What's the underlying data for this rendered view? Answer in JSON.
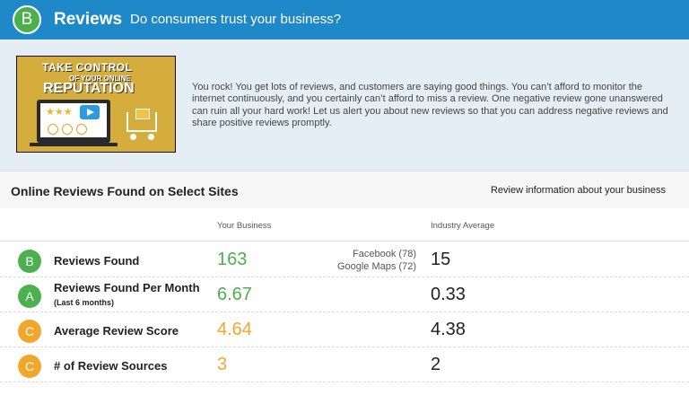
{
  "header": {
    "grade": "B",
    "grade_color": "#4cb04e",
    "title": "Reviews",
    "subtitle": "Do consumers trust your business?",
    "bar_color": "#1e88c8"
  },
  "intro": {
    "thumbnail": {
      "line1": "TAKE CONTROL",
      "line2": "OF YOUR ONLINE",
      "line3": "REPUTATION",
      "stars": "★★★"
    },
    "text": "You rock! You get lots of reviews, and customers are saying good things. You can’t afford to monitor the internet continuously, and you certainly can’t afford to miss a review. One negative review gone unanswered can ruin all your hard work! Let us alert you about new reviews so that you can address negative reviews and share positive reviews promptly."
  },
  "section": {
    "title": "Online Reviews Found on Select Sites",
    "link": "Review information about your business"
  },
  "columns": {
    "your_business": "Your Business",
    "industry_average": "Industry Average"
  },
  "rows": [
    {
      "grade": "B",
      "grade_color": "#4cb04e",
      "label": "Reviews Found",
      "value": "163",
      "value_color": "#4cb04e",
      "sources": [
        "Facebook (78)",
        "Google Maps (72)"
      ],
      "industry": "15"
    },
    {
      "grade": "A",
      "grade_color": "#4cb04e",
      "label": "Reviews Found Per Month",
      "sublabel": "(Last 6 months)",
      "value": "6.67",
      "value_color": "#4cb04e",
      "industry": "0.33"
    },
    {
      "grade": "C",
      "grade_color": "#f0a82c",
      "label": "Average Review Score",
      "value": "4.64",
      "value_color": "#f0a82c",
      "industry": "4.38"
    },
    {
      "grade": "C",
      "grade_color": "#f0a82c",
      "label": "# of Review Sources",
      "value": "3",
      "value_color": "#f0a82c",
      "industry": "2"
    }
  ]
}
